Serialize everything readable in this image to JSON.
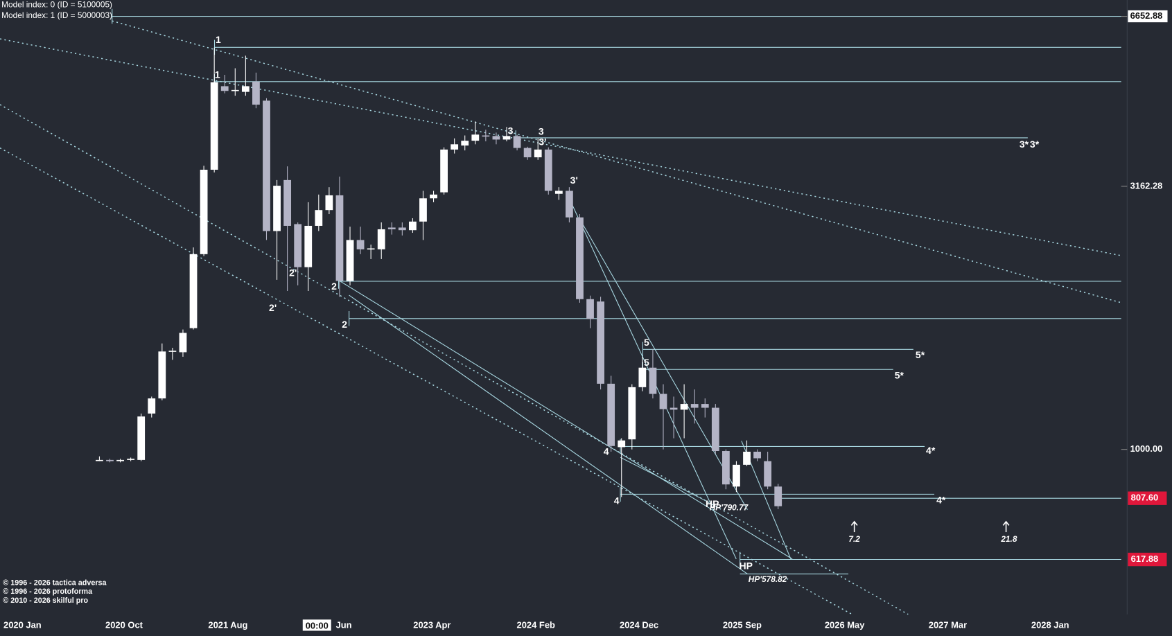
{
  "chart_data": {
    "type": "candlestick",
    "header_lines": [
      "Model index: 0  (ID = 5100005)",
      "Model index: 1  (ID = 5000003)"
    ],
    "x_axis_labels": [
      "2020 Jan",
      "2020 Oct",
      "2021 Aug",
      "Jun",
      "2023 Apr",
      "2024 Feb",
      "2024 Dec",
      "2025 Sep",
      "2026 May",
      "2027 Mar",
      "2028 Jan"
    ],
    "cursor_time": "00:00",
    "log_scale": true,
    "ylim": [
      486,
      7145
    ],
    "yticks": [
      6652.88,
      3162.28,
      {
        "value": 1000,
        "label": "1000.00"
      }
    ],
    "price_markers": [
      {
        "value": 807.6,
        "label": "807.60",
        "color": "#e0173b"
      },
      {
        "value": 617.88,
        "label": "617.88",
        "color": "#e0173b"
      }
    ],
    "levels": [
      6652.88,
      5808,
      4999,
      3909,
      2087,
      1773,
      1549,
      1419,
      1013,
      822,
      807.6,
      617.88
    ],
    "up_color": "#ffffff",
    "down_color": "#b4b4c6",
    "level_color": "#a9d9e3",
    "open": [
      955,
      955,
      950,
      955,
      955,
      1170,
      1250,
      1535,
      1530,
      1700,
      2350,
      3400,
      4900,
      4800,
      4780,
      5000,
      4600,
      2600,
      3250,
      2680,
      2220,
      2660,
      2850,
      3040,
      2090,
      2500,
      2400,
      2400,
      2640,
      2640,
      2610,
      2710,
      3000,
      3080,
      3714,
      3780,
      3860,
      3950,
      3940,
      3880,
      3940,
      3740,
      3590,
      3714,
      3060,
      3100,
      2760,
      1930,
      1910,
      1333,
      1010,
      1045,
      1313,
      1430,
      1275,
      1200,
      1190,
      1220,
      1220,
      1200,
      993,
      850,
      935,
      990,
      950,
      850
    ],
    "high": [
      970,
      960,
      960,
      965,
      1170,
      1260,
      1590,
      1560,
      1690,
      2420,
      3460,
      5800,
      5150,
      5300,
      5600,
      5200,
      4650,
      3250,
      3450,
      2700,
      2950,
      3050,
      3150,
      3300,
      2650,
      2650,
      2450,
      2700,
      2700,
      2700,
      2750,
      3100,
      3100,
      3750,
      3900,
      3950,
      4200,
      4050,
      4000,
      4100,
      3960,
      3760,
      3900,
      3750,
      3150,
      3150,
      2800,
      1960,
      1950,
      1380,
      1050,
      1330,
      1500,
      1550,
      1330,
      1260,
      1330,
      1300,
      1250,
      1220,
      1000,
      950,
      1040,
      1000,
      990,
      860
    ],
    "low": [
      950,
      945,
      945,
      950,
      950,
      1150,
      1240,
      1480,
      1500,
      1690,
      2330,
      3360,
      4750,
      4700,
      4700,
      4450,
      2500,
      2100,
      2000,
      2050,
      2000,
      2600,
      2800,
      1950,
      2050,
      2350,
      2300,
      2300,
      2560,
      2550,
      2580,
      2500,
      2950,
      3050,
      3650,
      3700,
      3800,
      3850,
      3800,
      3850,
      3700,
      3550,
      3550,
      3050,
      2980,
      2700,
      1900,
      1700,
      1300,
      990,
      812,
      1000,
      1290,
      1250,
      1000,
      1050,
      1050,
      1120,
      1150,
      980,
      840,
      830,
      930,
      950,
      840,
      770
    ],
    "close": [
      955,
      950,
      955,
      960,
      1155,
      1250,
      1535,
      1540,
      1665,
      2350,
      3400,
      4986,
      4800,
      4820,
      4900,
      4520,
      2600,
      3170,
      2660,
      2220,
      2660,
      2850,
      3040,
      2090,
      2500,
      2400,
      2410,
      2620,
      2620,
      2610,
      2710,
      3000,
      3050,
      3714,
      3800,
      3860,
      3965,
      3940,
      3880,
      3940,
      3740,
      3590,
      3714,
      3100,
      3100,
      2760,
      1930,
      1770,
      1333,
      1015,
      1040,
      1313,
      1430,
      1275,
      1193,
      1190,
      1220,
      1200,
      1200,
      993,
      858,
      935,
      990,
      962,
      850,
      780
    ],
    "annotations": [
      "1",
      "1",
      "2'",
      "2'",
      "2",
      "2",
      "3",
      "3",
      "3'",
      "3'",
      "4",
      "4",
      "5",
      "5",
      "5*",
      "5*",
      "4*",
      "4*",
      "3*",
      "3*",
      "HP",
      "HP'790.77",
      "HP",
      "HP'578.82",
      "7.2",
      "21.8"
    ],
    "copyright": [
      "© 1996 - 2026 tactica adversa",
      "© 1996 - 2026 protoforma",
      "© 2010 - 2026 skilful pro"
    ]
  }
}
